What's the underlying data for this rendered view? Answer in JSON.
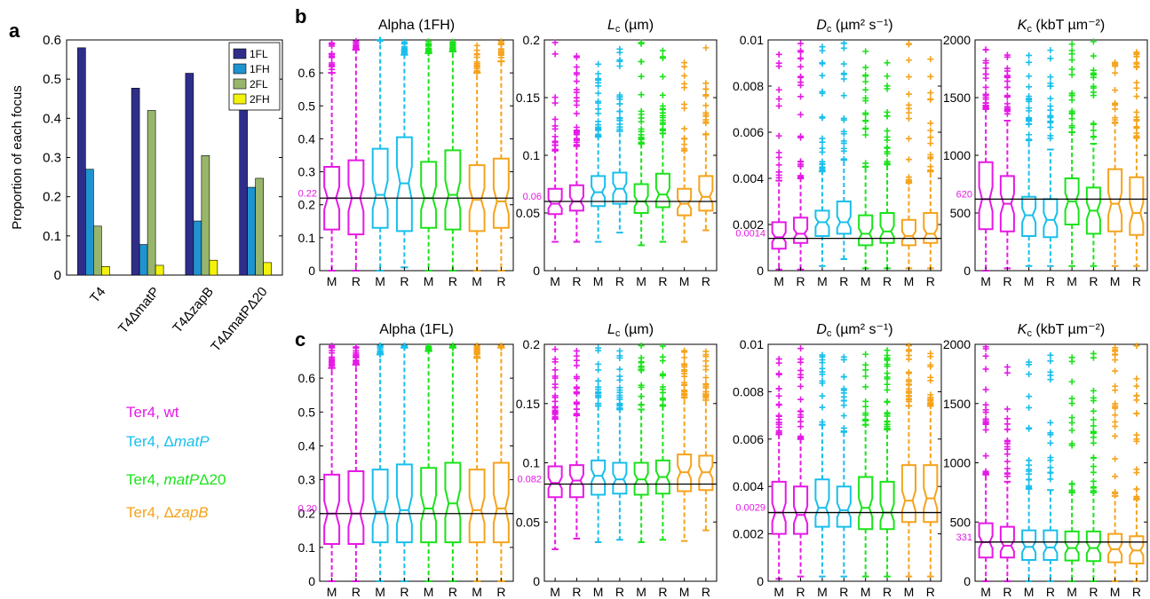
{
  "panel_letters": [
    "a",
    "b",
    "c"
  ],
  "chart_data": [
    {
      "id": "a",
      "type": "bar",
      "ylabel": "Proportion of each focus",
      "ylim": [
        0,
        0.6
      ],
      "yticks": [
        0,
        0.1,
        0.2,
        0.3,
        0.4,
        0.5,
        0.6
      ],
      "categories": [
        "T4",
        "T4ΔmatP",
        "T4ΔzapB",
        "T4ΔmatPΔ20"
      ],
      "legend_position": "top-right",
      "series": [
        {
          "name": "1FL",
          "color": "#2e2e8a",
          "values": [
            0.58,
            0.477,
            0.515,
            0.496
          ]
        },
        {
          "name": "1FH",
          "color": "#1f93cf",
          "values": [
            0.27,
            0.078,
            0.138,
            0.224
          ]
        },
        {
          "name": "2FL",
          "color": "#98b56c",
          "values": [
            0.125,
            0.42,
            0.305,
            0.247
          ]
        },
        {
          "name": "2FH",
          "color": "#f2f20d",
          "values": [
            0.022,
            0.025,
            0.038,
            0.032
          ]
        }
      ]
    },
    {
      "id": "b1",
      "type": "box",
      "title": "Alpha (1FH)",
      "ylim": [
        0,
        0.7
      ],
      "yticks": [
        0,
        0.1,
        0.2,
        0.3,
        0.4,
        0.5,
        0.6
      ],
      "ref": 0.22,
      "ref_label": "0.22",
      "categories": [
        "M",
        "R",
        "M",
        "R",
        "M",
        "R",
        "M",
        "R"
      ],
      "boxes": [
        {
          "q1": 0.125,
          "med": 0.22,
          "q3": 0.315,
          "lo": 0.0,
          "hi": 0.6
        },
        {
          "q1": 0.11,
          "med": 0.22,
          "q3": 0.335,
          "lo": 0.0,
          "hi": 0.67
        },
        {
          "q1": 0.13,
          "med": 0.23,
          "q3": 0.37,
          "lo": 0.0,
          "hi": 0.7
        },
        {
          "q1": 0.12,
          "med": 0.265,
          "q3": 0.405,
          "lo": 0.01,
          "hi": 0.655
        },
        {
          "q1": 0.13,
          "med": 0.22,
          "q3": 0.33,
          "lo": 0.0,
          "hi": 0.66
        },
        {
          "q1": 0.125,
          "med": 0.23,
          "q3": 0.365,
          "lo": 0.0,
          "hi": 0.665
        },
        {
          "q1": 0.12,
          "med": 0.215,
          "q3": 0.32,
          "lo": 0.0,
          "hi": 0.6
        },
        {
          "q1": 0.13,
          "med": 0.21,
          "q3": 0.34,
          "lo": 0.0,
          "hi": 0.635
        }
      ]
    },
    {
      "id": "b2",
      "type": "box",
      "title": "Lc (µm)",
      "ylim": [
        0,
        0.2
      ],
      "yticks": [
        0,
        0.05,
        0.1,
        0.15,
        0.2
      ],
      "ref": 0.06,
      "ref_label": "0.06",
      "categories": [
        "M",
        "R",
        "M",
        "R",
        "M",
        "R",
        "M",
        "R"
      ],
      "boxes": [
        {
          "q1": 0.049,
          "med": 0.058,
          "q3": 0.071,
          "lo": 0.025,
          "hi": 0.104
        },
        {
          "q1": 0.052,
          "med": 0.06,
          "q3": 0.074,
          "lo": 0.025,
          "hi": 0.108
        },
        {
          "q1": 0.056,
          "med": 0.068,
          "q3": 0.082,
          "lo": 0.025,
          "hi": 0.116
        },
        {
          "q1": 0.058,
          "med": 0.071,
          "q3": 0.085,
          "lo": 0.033,
          "hi": 0.121
        },
        {
          "q1": 0.05,
          "med": 0.06,
          "q3": 0.075,
          "lo": 0.022,
          "hi": 0.11
        },
        {
          "q1": 0.055,
          "med": 0.066,
          "q3": 0.084,
          "lo": 0.025,
          "hi": 0.119
        },
        {
          "q1": 0.048,
          "med": 0.058,
          "q3": 0.071,
          "lo": 0.025,
          "hi": 0.104
        },
        {
          "q1": 0.052,
          "med": 0.064,
          "q3": 0.082,
          "lo": 0.035,
          "hi": 0.118
        }
      ]
    },
    {
      "id": "b3",
      "type": "box",
      "title": "Dc (µm² s⁻¹)",
      "ylim": [
        0,
        0.01
      ],
      "yticks": [
        0,
        0.002,
        0.004,
        0.006,
        0.008,
        0.01
      ],
      "ref": 0.0014,
      "ref_label": "0.0014",
      "categories": [
        "M",
        "R",
        "M",
        "R",
        "M",
        "R",
        "M",
        "R"
      ],
      "boxes": [
        {
          "q1": 0.00095,
          "med": 0.00145,
          "q3": 0.0021,
          "lo": 5e-05,
          "hi": 0.0039
        },
        {
          "q1": 0.0012,
          "med": 0.0016,
          "q3": 0.0023,
          "lo": 5e-05,
          "hi": 0.004
        },
        {
          "q1": 0.0015,
          "med": 0.0021,
          "q3": 0.0026,
          "lo": 0.0002,
          "hi": 0.0043
        },
        {
          "q1": 0.0016,
          "med": 0.0021,
          "q3": 0.003,
          "lo": 0.0005,
          "hi": 0.0048
        },
        {
          "q1": 0.0011,
          "med": 0.0016,
          "q3": 0.0024,
          "lo": 0.0001,
          "hi": 0.0045
        },
        {
          "q1": 0.0012,
          "med": 0.0017,
          "q3": 0.0025,
          "lo": 0.0001,
          "hi": 0.0046
        },
        {
          "q1": 0.0011,
          "med": 0.0015,
          "q3": 0.0022,
          "lo": 0.0001,
          "hi": 0.0038
        },
        {
          "q1": 0.0012,
          "med": 0.0016,
          "q3": 0.0025,
          "lo": 0.0001,
          "hi": 0.0043
        }
      ]
    },
    {
      "id": "b4",
      "type": "box",
      "title": "Kc (kbT µm⁻²)",
      "ylim": [
        0,
        2000
      ],
      "yticks": [
        0,
        500,
        1000,
        1500,
        2000
      ],
      "ref": 620,
      "ref_label": "620",
      "categories": [
        "M",
        "R",
        "M",
        "R",
        "M",
        "R",
        "M",
        "R"
      ],
      "boxes": [
        {
          "q1": 360,
          "med": 620,
          "q3": 940,
          "lo": 0,
          "hi": 1400
        },
        {
          "q1": 340,
          "med": 580,
          "q3": 820,
          "lo": 20,
          "hi": 1300
        },
        {
          "q1": 300,
          "med": 480,
          "q3": 640,
          "lo": 40,
          "hi": 1130
        },
        {
          "q1": 290,
          "med": 440,
          "q3": 620,
          "lo": 40,
          "hi": 1050
        },
        {
          "q1": 400,
          "med": 600,
          "q3": 800,
          "lo": 40,
          "hi": 1200
        },
        {
          "q1": 320,
          "med": 520,
          "q3": 720,
          "lo": 40,
          "hi": 1100
        },
        {
          "q1": 340,
          "med": 580,
          "q3": 880,
          "lo": 40,
          "hi": 1280
        },
        {
          "q1": 310,
          "med": 500,
          "q3": 810,
          "lo": 40,
          "hi": 1150
        }
      ]
    },
    {
      "id": "c1",
      "type": "box",
      "title": "Alpha (1FL)",
      "ylim": [
        0,
        0.7
      ],
      "yticks": [
        0,
        0.1,
        0.2,
        0.3,
        0.4,
        0.5,
        0.6
      ],
      "ref": 0.2,
      "ref_label": "0.20",
      "categories": [
        "M",
        "R",
        "M",
        "R",
        "M",
        "R",
        "M",
        "R"
      ],
      "boxes": [
        {
          "q1": 0.11,
          "med": 0.2,
          "q3": 0.315,
          "lo": 0.0,
          "hi": 0.63
        },
        {
          "q1": 0.11,
          "med": 0.2,
          "q3": 0.325,
          "lo": 0.0,
          "hi": 0.64
        },
        {
          "q1": 0.115,
          "med": 0.205,
          "q3": 0.33,
          "lo": 0.0,
          "hi": 0.67
        },
        {
          "q1": 0.115,
          "med": 0.21,
          "q3": 0.345,
          "lo": 0.0,
          "hi": 0.69
        },
        {
          "q1": 0.115,
          "med": 0.215,
          "q3": 0.335,
          "lo": 0.0,
          "hi": 0.68
        },
        {
          "q1": 0.115,
          "med": 0.23,
          "q3": 0.35,
          "lo": 0.0,
          "hi": 0.69
        },
        {
          "q1": 0.115,
          "med": 0.21,
          "q3": 0.33,
          "lo": 0.0,
          "hi": 0.66
        },
        {
          "q1": 0.115,
          "med": 0.215,
          "q3": 0.35,
          "lo": 0.0,
          "hi": 0.69
        }
      ]
    },
    {
      "id": "c2",
      "type": "box",
      "title": "Lc (µm)",
      "ylim": [
        0,
        0.2
      ],
      "yticks": [
        0,
        0.05,
        0.1,
        0.15,
        0.2
      ],
      "ref": 0.082,
      "ref_label": "0.082",
      "categories": [
        "M",
        "R",
        "M",
        "R",
        "M",
        "R",
        "M",
        "R"
      ],
      "boxes": [
        {
          "q1": 0.071,
          "med": 0.083,
          "q3": 0.097,
          "lo": 0.027,
          "hi": 0.137
        },
        {
          "q1": 0.071,
          "med": 0.085,
          "q3": 0.098,
          "lo": 0.036,
          "hi": 0.14
        },
        {
          "q1": 0.073,
          "med": 0.089,
          "q3": 0.102,
          "lo": 0.033,
          "hi": 0.148
        },
        {
          "q1": 0.074,
          "med": 0.086,
          "q3": 0.1,
          "lo": 0.035,
          "hi": 0.145
        },
        {
          "q1": 0.073,
          "med": 0.086,
          "q3": 0.1,
          "lo": 0.033,
          "hi": 0.145
        },
        {
          "q1": 0.074,
          "med": 0.088,
          "q3": 0.102,
          "lo": 0.035,
          "hi": 0.148
        },
        {
          "q1": 0.076,
          "med": 0.092,
          "q3": 0.107,
          "lo": 0.034,
          "hi": 0.155
        },
        {
          "q1": 0.077,
          "med": 0.092,
          "q3": 0.106,
          "lo": 0.043,
          "hi": 0.153
        }
      ]
    },
    {
      "id": "c3",
      "type": "box",
      "title": "Dc (µm² s⁻¹)",
      "ylim": [
        0,
        0.01
      ],
      "yticks": [
        0,
        0.002,
        0.004,
        0.006,
        0.008,
        0.01
      ],
      "ref": 0.0029,
      "ref_label": "0.0029",
      "categories": [
        "M",
        "R",
        "M",
        "R",
        "M",
        "R",
        "M",
        "R"
      ],
      "boxes": [
        {
          "q1": 0.002,
          "med": 0.0029,
          "q3": 0.0042,
          "lo": 0.0001,
          "hi": 0.0062
        },
        {
          "q1": 0.002,
          "med": 0.0028,
          "q3": 0.004,
          "lo": 0.0002,
          "hi": 0.006
        },
        {
          "q1": 0.0023,
          "med": 0.0031,
          "q3": 0.0043,
          "lo": 0.0002,
          "hi": 0.0066
        },
        {
          "q1": 0.0023,
          "med": 0.003,
          "q3": 0.004,
          "lo": 0.0002,
          "hi": 0.0063
        },
        {
          "q1": 0.0022,
          "med": 0.0031,
          "q3": 0.0044,
          "lo": 0.0002,
          "hi": 0.0066
        },
        {
          "q1": 0.0022,
          "med": 0.0029,
          "q3": 0.0042,
          "lo": 0.0002,
          "hi": 0.0064
        },
        {
          "q1": 0.0025,
          "med": 0.0034,
          "q3": 0.0049,
          "lo": 0.0002,
          "hi": 0.0074
        },
        {
          "q1": 0.0025,
          "med": 0.0035,
          "q3": 0.0049,
          "lo": 0.0002,
          "hi": 0.0074
        }
      ]
    },
    {
      "id": "c4",
      "type": "box",
      "title": "Kc (kbT µm⁻²)",
      "ylim": [
        0,
        2000
      ],
      "yticks": [
        0,
        500,
        1000,
        1500,
        2000
      ],
      "ref": 331,
      "ref_label": "331",
      "categories": [
        "M",
        "R",
        "M",
        "R",
        "M",
        "R",
        "M",
        "R"
      ],
      "boxes": [
        {
          "q1": 200,
          "med": 330,
          "q3": 490,
          "lo": 0,
          "hi": 900
        },
        {
          "q1": 200,
          "med": 300,
          "q3": 460,
          "lo": 0,
          "hi": 840
        },
        {
          "q1": 180,
          "med": 290,
          "q3": 430,
          "lo": 0,
          "hi": 780
        },
        {
          "q1": 180,
          "med": 285,
          "q3": 430,
          "lo": 0,
          "hi": 770
        },
        {
          "q1": 175,
          "med": 280,
          "q3": 420,
          "lo": 0,
          "hi": 750
        },
        {
          "q1": 170,
          "med": 280,
          "q3": 420,
          "lo": 0,
          "hi": 750
        },
        {
          "q1": 160,
          "med": 270,
          "q3": 400,
          "lo": 0,
          "hi": 720
        },
        {
          "q1": 150,
          "med": 260,
          "q3": 380,
          "lo": 0,
          "hi": 690
        }
      ]
    }
  ],
  "group_colors": [
    "#e619e6",
    "#19bfeb",
    "#1ae31a",
    "#f5a31c"
  ],
  "ref_label_color": "#e619e6",
  "legend_groups": [
    {
      "label": "Ter4, wt",
      "color": "#e619e6"
    },
    {
      "label": "Ter4, ΔmatP",
      "color": "#19bfeb"
    },
    {
      "label": "Ter4, matPΔ20",
      "color": "#1ae31a"
    },
    {
      "label": "Ter4, ΔzapB",
      "color": "#f5a31c"
    }
  ]
}
